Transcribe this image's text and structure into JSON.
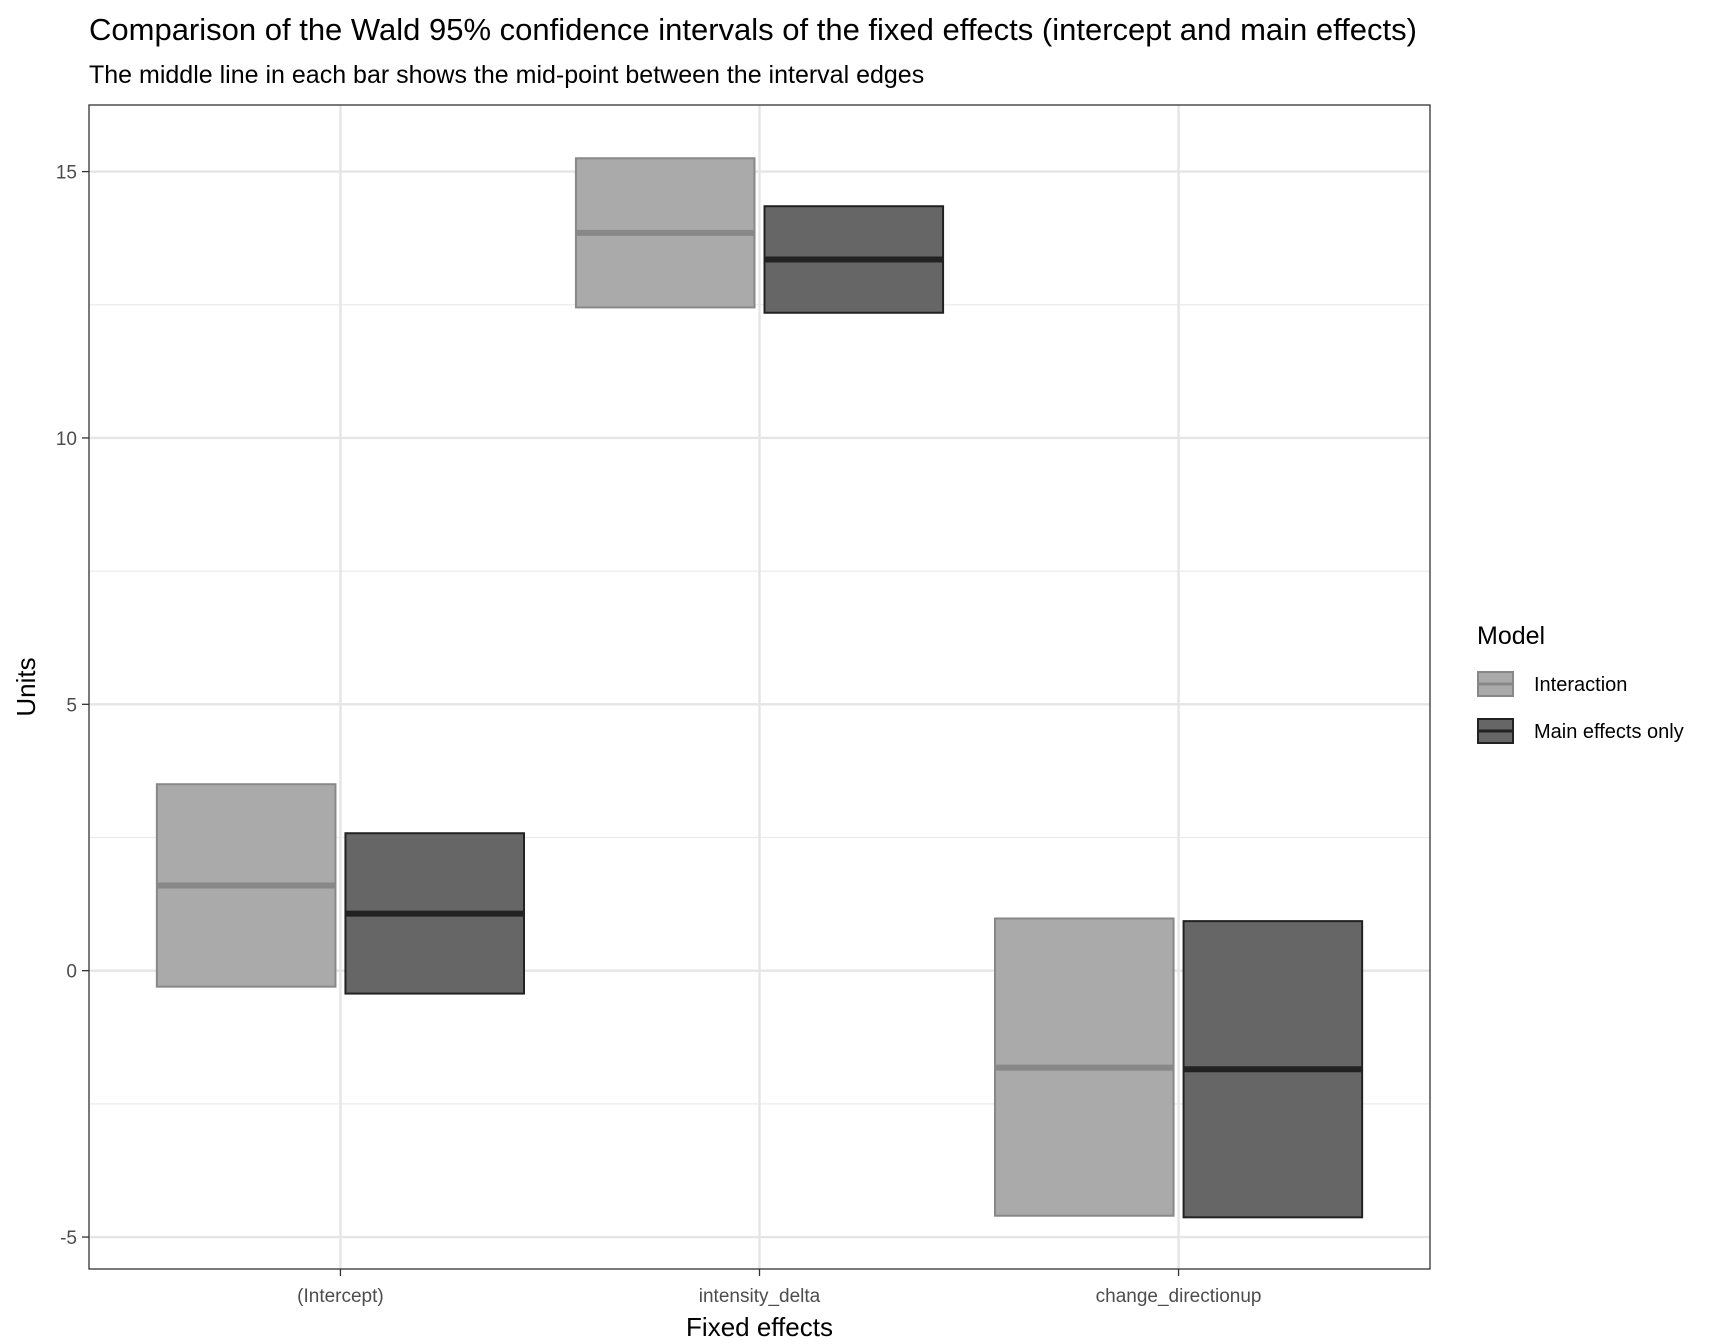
{
  "chart_data": {
    "type": "crossbar",
    "title": "Comparison of the Wald 95% confidence intervals of the fixed effects (intercept and main effects)",
    "subtitle": "The middle line in each bar shows the mid-point between the interval edges",
    "xlabel": "Fixed effects",
    "ylabel": "Units",
    "categories": [
      "(Intercept)",
      "intensity_delta",
      "change_directionup"
    ],
    "ylim": [
      -5.6,
      16.25
    ],
    "yticks": [
      -5,
      0,
      5,
      10,
      15
    ],
    "ytick_labels": [
      "-5",
      "0",
      "5",
      "10",
      "15"
    ],
    "grid": true,
    "legend": {
      "title": "Model",
      "position": "right",
      "entries": [
        "Interaction",
        "Main effects only"
      ]
    },
    "series": [
      {
        "name": "Interaction",
        "fill": "#aaaaaa",
        "stroke": "#888888",
        "lower": [
          -0.3,
          12.45,
          -4.6
        ],
        "mid": [
          1.6,
          13.85,
          -1.82
        ],
        "upper": [
          3.5,
          15.25,
          0.98
        ]
      },
      {
        "name": "Main effects only",
        "fill": "#666666",
        "stroke": "#222222",
        "lower": [
          -0.43,
          12.35,
          -4.63
        ],
        "mid": [
          1.07,
          13.35,
          -1.85
        ],
        "upper": [
          2.58,
          14.35,
          0.93
        ]
      }
    ]
  }
}
